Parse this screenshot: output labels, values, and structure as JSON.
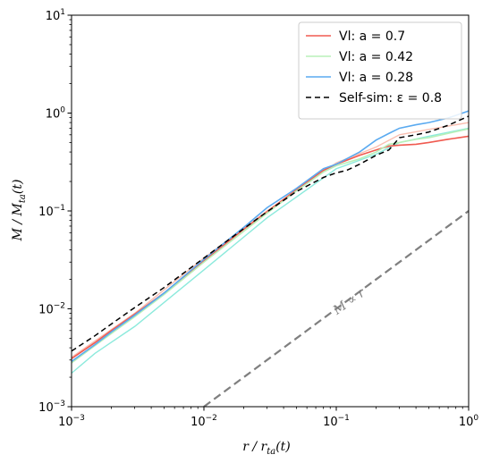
{
  "chart_data": {
    "type": "line",
    "xscale": "log",
    "yscale": "log",
    "xlim": [
      0.001,
      1
    ],
    "ylim": [
      0.001,
      10
    ],
    "xlabel": "r / r_ta(t)",
    "ylabel": "M / M_ta(t)",
    "x_ticks": [
      {
        "value": 0.001,
        "base": "10",
        "exp": "−3"
      },
      {
        "value": 0.01,
        "base": "10",
        "exp": "−2"
      },
      {
        "value": 0.1,
        "base": "10",
        "exp": "−1"
      },
      {
        "value": 1,
        "base": "10",
        "exp": "0"
      }
    ],
    "y_ticks": [
      {
        "value": 0.001,
        "base": "10",
        "exp": "−3"
      },
      {
        "value": 0.01,
        "base": "10",
        "exp": "−2"
      },
      {
        "value": 0.1,
        "base": "10",
        "exp": "−1"
      },
      {
        "value": 1,
        "base": "10",
        "exp": "0"
      },
      {
        "value": 10,
        "base": "10",
        "exp": "1"
      }
    ],
    "legend_position": "top-right",
    "series": [
      {
        "name": "Vl: a = 0.7",
        "color": "#f05a50",
        "dash": "",
        "x": [
          0.001,
          0.0015,
          0.002,
          0.003,
          0.005,
          0.01,
          0.02,
          0.03,
          0.05,
          0.08,
          0.1,
          0.15,
          0.2,
          0.25,
          0.3,
          0.4,
          0.5,
          0.7,
          1.0
        ],
        "y": [
          0.0031,
          0.0045,
          0.006,
          0.0088,
          0.0145,
          0.031,
          0.065,
          0.098,
          0.165,
          0.26,
          0.3,
          0.37,
          0.42,
          0.46,
          0.47,
          0.48,
          0.5,
          0.54,
          0.58
        ]
      },
      {
        "name": "Vl: a = 0.42",
        "color": "#b8f0b8",
        "dash": "",
        "x": [
          0.001,
          0.0015,
          0.002,
          0.003,
          0.005,
          0.01,
          0.02,
          0.03,
          0.05,
          0.08,
          0.1,
          0.15,
          0.2,
          0.25,
          0.3,
          0.4,
          0.5,
          0.7,
          1.0
        ],
        "y": [
          0.0028,
          0.0042,
          0.0056,
          0.0083,
          0.014,
          0.03,
          0.062,
          0.095,
          0.16,
          0.25,
          0.29,
          0.34,
          0.4,
          0.48,
          0.5,
          0.54,
          0.56,
          0.62,
          0.69
        ]
      },
      {
        "name": "Vl: a = 0.28",
        "color": "#5aaaf0",
        "dash": "",
        "x": [
          0.001,
          0.0015,
          0.002,
          0.003,
          0.005,
          0.01,
          0.02,
          0.03,
          0.05,
          0.08,
          0.1,
          0.15,
          0.2,
          0.25,
          0.3,
          0.4,
          0.5,
          0.7,
          1.0
        ],
        "y": [
          0.0029,
          0.0043,
          0.0058,
          0.0086,
          0.0145,
          0.032,
          0.068,
          0.108,
          0.17,
          0.27,
          0.3,
          0.4,
          0.53,
          0.62,
          0.7,
          0.76,
          0.8,
          0.89,
          1.05
        ]
      },
      {
        "name": "Self-sim: ε = 0.8",
        "color": "#000000",
        "dash": "6 4",
        "x": [
          0.001,
          0.0015,
          0.002,
          0.003,
          0.005,
          0.01,
          0.02,
          0.03,
          0.05,
          0.08,
          0.1,
          0.12,
          0.15,
          0.2,
          0.25,
          0.3,
          0.4,
          0.5,
          0.7,
          1.0
        ],
        "y": [
          0.0037,
          0.0053,
          0.007,
          0.0103,
          0.0165,
          0.033,
          0.066,
          0.098,
          0.158,
          0.22,
          0.245,
          0.26,
          0.3,
          0.37,
          0.42,
          0.56,
          0.6,
          0.64,
          0.75,
          0.93
        ]
      },
      {
        "name": "",
        "color": "#7f7f7f",
        "dash": "9 5",
        "x": [
          0.01,
          1.0
        ],
        "y": [
          0.001,
          0.1
        ]
      }
    ],
    "reference_series": [
      {
        "color": "#f9b8a8",
        "x": [
          0.001,
          0.003,
          0.01,
          0.03,
          0.1,
          0.2,
          0.3,
          0.5,
          1.0
        ],
        "y": [
          0.0032,
          0.009,
          0.033,
          0.1,
          0.31,
          0.45,
          0.6,
          0.68,
          0.8
        ]
      },
      {
        "color": "#80e8d8",
        "x": [
          0.001,
          0.0015,
          0.003,
          0.01,
          0.03,
          0.1,
          0.2,
          0.3,
          0.5,
          1.0
        ],
        "y": [
          0.0022,
          0.0035,
          0.0066,
          0.025,
          0.085,
          0.27,
          0.38,
          0.5,
          0.58,
          0.7
        ]
      }
    ],
    "annotations": [
      {
        "text": "M ∝ r",
        "color": "#7f7f7f",
        "x": 0.13,
        "y": 0.011
      }
    ]
  }
}
